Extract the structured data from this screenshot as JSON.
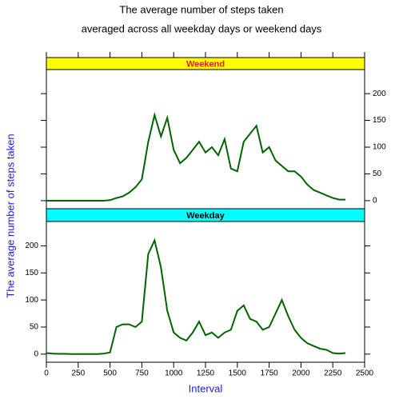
{
  "chart_data": {
    "type": "line",
    "title": "The average number of steps taken",
    "subtitle": "averaged across all weekday days or weekend days",
    "xlabel": "Interval",
    "ylabel": "The average number of steps  taken",
    "xlim": [
      0,
      2500
    ],
    "xticks": [
      0,
      250,
      500,
      750,
      1000,
      1250,
      1500,
      1750,
      2000,
      2250,
      2500
    ],
    "ylim": [
      -15,
      245
    ],
    "yticks": [
      0,
      50,
      100,
      150,
      200
    ],
    "x": [
      0,
      50,
      100,
      150,
      200,
      250,
      300,
      350,
      400,
      450,
      500,
      550,
      600,
      650,
      700,
      750,
      800,
      850,
      900,
      950,
      1000,
      1050,
      1100,
      1150,
      1200,
      1250,
      1300,
      1350,
      1400,
      1450,
      1500,
      1550,
      1600,
      1650,
      1700,
      1750,
      1800,
      1850,
      1900,
      1950,
      2000,
      2050,
      2100,
      2150,
      2200,
      2250,
      2300,
      2350
    ],
    "series": [
      {
        "name": "Weekend",
        "color": "#006400",
        "strip_color": "#ffff00",
        "strip_text_color": "#e0201b",
        "values": [
          0,
          0,
          0,
          0,
          0,
          0,
          0,
          0,
          0,
          0,
          1,
          5,
          8,
          15,
          25,
          40,
          110,
          160,
          120,
          155,
          95,
          70,
          80,
          95,
          110,
          90,
          100,
          85,
          115,
          60,
          55,
          110,
          125,
          140,
          90,
          100,
          75,
          65,
          55,
          55,
          45,
          30,
          20,
          15,
          10,
          5,
          2,
          2
        ]
      },
      {
        "name": "Weekday",
        "color": "#006400",
        "strip_color": "#00ffff",
        "strip_text_color": "#000000",
        "values": [
          2,
          1,
          0.5,
          0.5,
          0,
          0,
          0,
          0,
          0,
          1,
          3,
          50,
          55,
          55,
          50,
          60,
          185,
          210,
          160,
          80,
          40,
          30,
          25,
          40,
          60,
          35,
          40,
          30,
          40,
          45,
          80,
          90,
          65,
          60,
          45,
          50,
          75,
          100,
          70,
          45,
          30,
          20,
          15,
          10,
          8,
          2,
          1,
          2
        ]
      }
    ]
  }
}
